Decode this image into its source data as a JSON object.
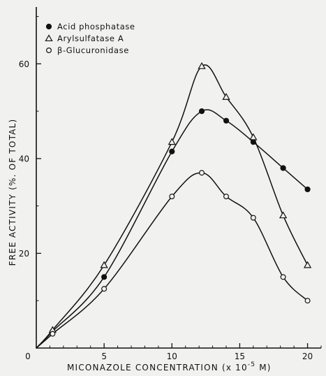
{
  "chart_data": {
    "type": "line",
    "xlabel_main": "MICONAZOLE  CONCENTRATION (x 10",
    "xlabel_exp": "-5",
    "xlabel_tail": " M)",
    "ylabel": "FREE ACTIVITY (%. OF TOTAL)",
    "xlim": [
      0,
      21
    ],
    "ylim": [
      0,
      72
    ],
    "xticks": [
      0,
      5,
      10,
      15,
      20
    ],
    "yticks": [
      20,
      40,
      60
    ],
    "minor_xticks": [
      1,
      2,
      3,
      4,
      6,
      7,
      8,
      9,
      11,
      12,
      13,
      14,
      16,
      17,
      18,
      19,
      21
    ],
    "minor_yticks": [
      10,
      30,
      50,
      70
    ],
    "legend_position": "top-left",
    "series": [
      {
        "name": "Acid phosphatase",
        "marker": "filled-circle",
        "x": [
          1.2,
          5,
          10,
          12.2,
          14,
          16,
          18.2,
          20
        ],
        "y": [
          3.5,
          15,
          41.5,
          50,
          48,
          43.5,
          38,
          33.5
        ]
      },
      {
        "name": "Arylsulfatase A",
        "marker": "open-triangle",
        "x": [
          1.2,
          5,
          10,
          12.2,
          14,
          16,
          18.2,
          20
        ],
        "y": [
          3.8,
          17.5,
          43.5,
          59.5,
          53,
          44.5,
          28,
          17.5
        ]
      },
      {
        "name": "β-Glucuronidase",
        "marker": "open-circle",
        "x": [
          1.2,
          5,
          10,
          12.2,
          14,
          16,
          18.2,
          20
        ],
        "y": [
          3,
          12.5,
          32,
          37,
          32,
          27.5,
          15,
          10
        ]
      }
    ]
  }
}
